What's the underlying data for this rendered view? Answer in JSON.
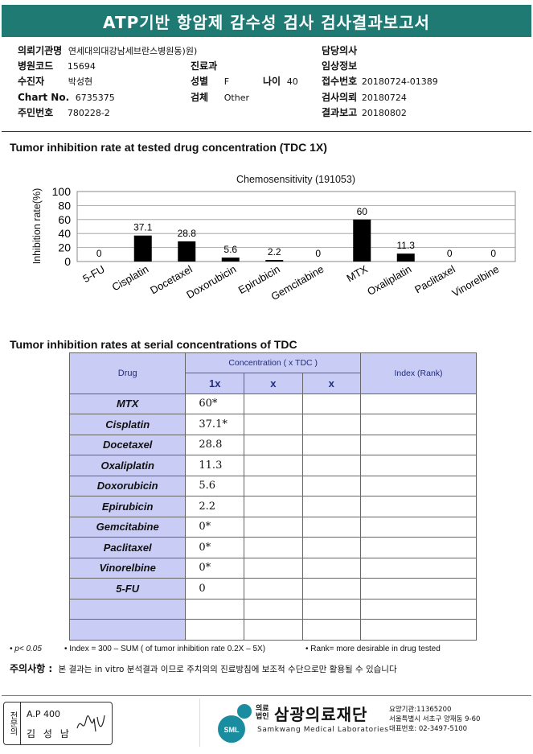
{
  "title": "ATP기반 항암제 감수성 검사 검사결과보고서",
  "info": {
    "institution_label": "의뢰기관명",
    "institution": "연세대의대강남세브란스병원",
    "dept_label": "동)원)",
    "hospital_code_label": "병원코드",
    "hospital_code": "15694",
    "specialty_label": "진료과",
    "specialty": "",
    "attending_label": "담당의사",
    "attending": "",
    "patient_label": "수진자",
    "patient": "박성현",
    "sex_label": "성별",
    "sex": "F",
    "age_label": "나이",
    "age": "40",
    "clinical_label": "임상정보",
    "clinical": "",
    "chart_label": "Chart No.",
    "chart": "6735375",
    "specimen_label": "검체",
    "specimen": "Other",
    "receipt_label": "접수번호",
    "receipt": "20180724-01389",
    "resident_label": "주민번호",
    "resident": "780228-2",
    "request_label": "검사의뢰",
    "request": "20180724",
    "report_label": "결과보고",
    "report": "20180802"
  },
  "section1_title": "Tumor inhibition rate at tested drug concentration (TDC 1X)",
  "chart_data": {
    "type": "bar",
    "title": "Chemosensitivity (191053)",
    "ylabel": "Inhibition rate(%)",
    "xlabel": "",
    "ylim": [
      0,
      100
    ],
    "yticks": [
      "0",
      "20",
      "40",
      "60",
      "80",
      "100"
    ],
    "grid": true,
    "categories": [
      "5-FU",
      "Cisplatin",
      "Docetaxel",
      "Doxorubicin",
      "Epirubicin",
      "Gemcitabine",
      "MTX",
      "Oxaliplatin",
      "Paclitaxel",
      "Vinorelbine"
    ],
    "values": [
      0,
      37.1,
      28.8,
      5.6,
      2.2,
      0,
      60,
      11.3,
      0,
      0
    ],
    "data_labels": [
      "0",
      "37.1",
      "28.8",
      "5.6",
      "2.2",
      "0",
      "60",
      "11.3",
      "0",
      "0"
    ],
    "bar_color": "#000000"
  },
  "section2_title": "Tumor inhibition rates at serial concentrations of TDC",
  "table": {
    "drug_header": "Drug",
    "conc_header": "Concentration ( x TDC )",
    "index_header": "Index (Rank)",
    "sub_headers": [
      "1x",
      "x",
      "x"
    ],
    "rows": [
      {
        "drug": "MTX",
        "v1": "60*"
      },
      {
        "drug": "Cisplatin",
        "v1": "37.1*"
      },
      {
        "drug": "Docetaxel",
        "v1": "28.8"
      },
      {
        "drug": "Oxaliplatin",
        "v1": "11.3"
      },
      {
        "drug": "Doxorubicin",
        "v1": "5.6"
      },
      {
        "drug": "Epirubicin",
        "v1": "2.2"
      },
      {
        "drug": "Gemcitabine",
        "v1": "0*"
      },
      {
        "drug": "Paclitaxel",
        "v1": "0*"
      },
      {
        "drug": "Vinorelbine",
        "v1": "0*"
      },
      {
        "drug": "5-FU",
        "v1": "0"
      }
    ]
  },
  "footnotes": {
    "p": "• p< 0.05",
    "index": "• Index = 300 – SUM ( of tumor inhibition rate 0.2X  –  5X)",
    "rank": "• Rank= more desirable in drug tested"
  },
  "caution_label": "주의사항 :",
  "caution_text": "본 결과는 in vitro 분석결과 이므로 주치의의 진료방침에 보조적 수단으로만 활용될 수 있습니다",
  "signature": {
    "box_label": "전문의",
    "doctor_id": "A.P 400",
    "doctor_name": "김 성 남"
  },
  "org": {
    "type": "의료법인",
    "name": "삼광의료재단",
    "english": "Samkwang Medical Laboratories",
    "logo_text": "SML",
    "code": "요양기관:11365200",
    "address": "서울특별시 서초구 양재동 9-60",
    "phone": "대표번호: 02-3497-5100"
  }
}
